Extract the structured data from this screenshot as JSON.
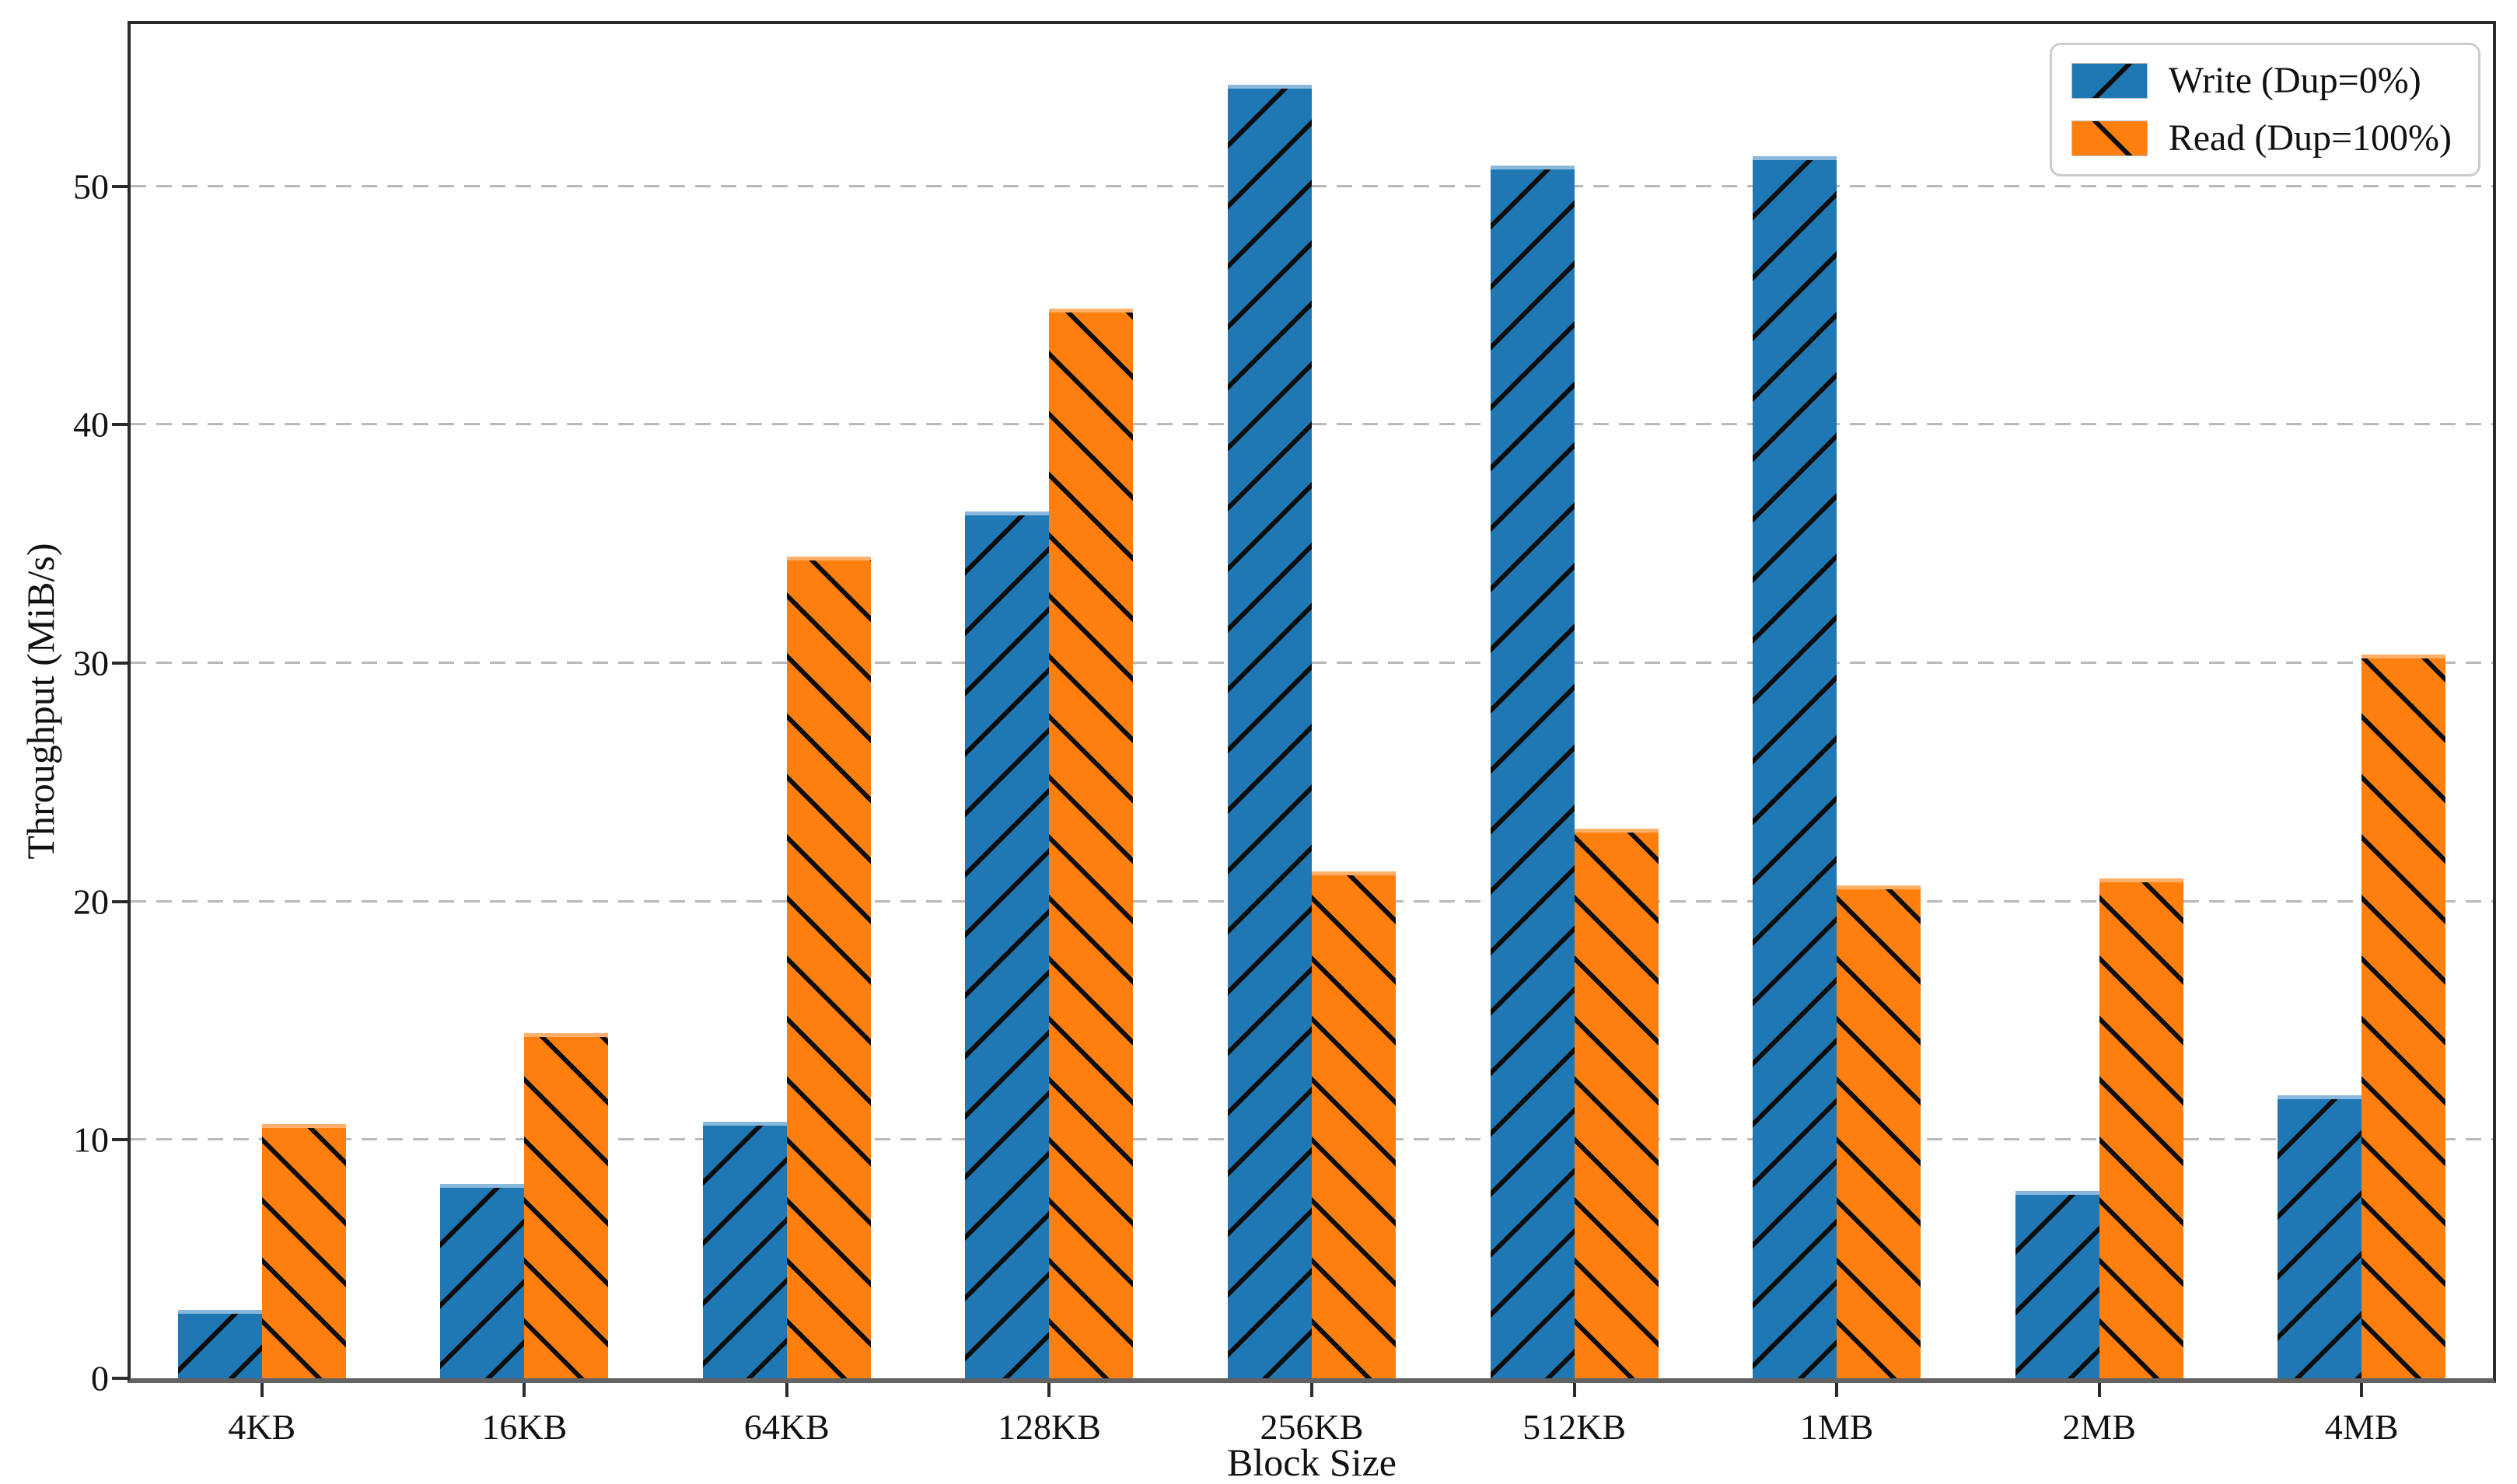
{
  "chart_data": {
    "type": "bar",
    "title": "",
    "xlabel": "Block Size",
    "ylabel": "Throughput (MiB/s)",
    "categories": [
      "4KB",
      "16KB",
      "64KB",
      "128KB",
      "256KB",
      "512KB",
      "1MB",
      "2MB",
      "4MB"
    ],
    "series": [
      {
        "name": "Write (Dup=0%)",
        "color": "#1f77b4",
        "edge_highlight": "#8ab8dc",
        "hatch": "/",
        "values": [
          2.7,
          8.0,
          10.6,
          36.2,
          54.1,
          50.7,
          51.1,
          7.7,
          11.7
        ]
      },
      {
        "name": "Read (Dup=100%)",
        "color": "#ff7f0e",
        "edge_highlight": "#ffb06a",
        "hatch": "\\",
        "values": [
          10.5,
          14.3,
          34.3,
          44.7,
          21.1,
          22.9,
          20.5,
          20.8,
          30.2
        ]
      }
    ],
    "ylim": [
      0,
      56.8
    ],
    "yticks": [
      0,
      10,
      20,
      30,
      40,
      50
    ],
    "grid": "horizontal-dashed",
    "grid_color": "#b9b9b9",
    "legend_position": "upper-right",
    "hatch_color": "#000000"
  }
}
